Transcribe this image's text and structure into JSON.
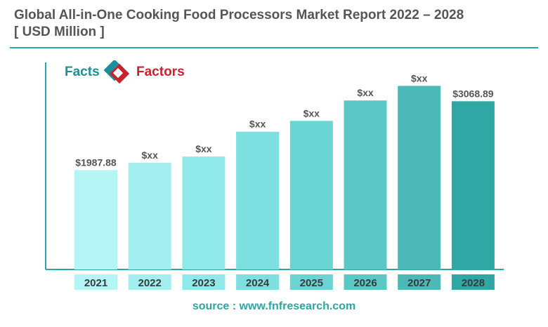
{
  "title_line1": "Global All-in-One Cooking Food Processors Market Report 2022 – 2028",
  "title_line2": "[ USD Million  ]",
  "logo": {
    "word1": "Facts",
    "word2": "Factors",
    "icon": "facts-factors-logo-icon"
  },
  "source": "source : www.fnfresearch.com",
  "colors": {
    "title": "#555555",
    "accent": "#2aa7a2",
    "bars": [
      "#b6f5f5",
      "#a3efef",
      "#8fe9e9",
      "#7ddfdf",
      "#6ad4d3",
      "#5bc8c6",
      "#4cb9b6",
      "#2fa8a5"
    ]
  },
  "chart_data": {
    "type": "bar",
    "categories": [
      "2021",
      "2022",
      "2023",
      "2024",
      "2025",
      "2026",
      "2027",
      "2028"
    ],
    "values": [
      1987.88,
      2100,
      2200,
      2590,
      2760,
      3080,
      3310,
      3068.89
    ],
    "data_labels": [
      "$1987.88",
      "$xx",
      "$xx",
      "$xx",
      "$xx",
      "$xx",
      "$xx",
      "$3068.89"
    ],
    "title": "Global All-in-One Cooking Food Processors Market Report 2022 – 2028",
    "ylabel": "",
    "xlabel": "",
    "grid": false,
    "legend": "none"
  }
}
